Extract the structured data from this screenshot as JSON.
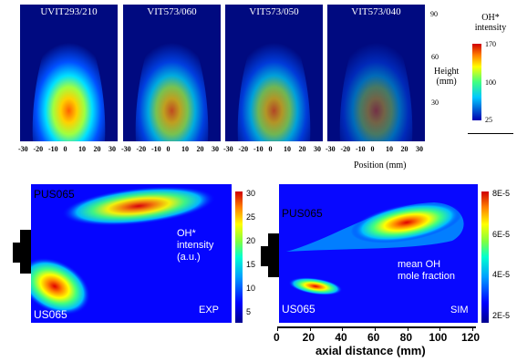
{
  "top": {
    "panels": [
      {
        "title": "UVIT293/210",
        "intensity": 1.0
      },
      {
        "title": "VIT573/060",
        "intensity": 0.75
      },
      {
        "title": "VIT573/050",
        "intensity": 0.7
      },
      {
        "title": "VIT573/040",
        "intensity": 0.45
      }
    ],
    "x_ticks": [
      "-30",
      "-20",
      "-10",
      "0",
      "10",
      "20",
      "30"
    ],
    "x_label": "Position (mm)",
    "y_ticks": [
      "90",
      "60",
      "30"
    ],
    "y_label": "Height\n(mm)",
    "colorbar": {
      "title": "OH*\nintensity",
      "ticks": [
        "170",
        "100",
        "25"
      ]
    }
  },
  "bottom_left": {
    "label_top": "PUS065",
    "label_bottom": "US065",
    "annotation": "OH*\nintensity\n(a.u.)",
    "tag": "EXP",
    "colorbar_ticks": [
      "30",
      "25",
      "20",
      "15",
      "10",
      "5"
    ]
  },
  "bottom_right": {
    "label_top": "PUS065",
    "label_bottom": "US065",
    "annotation": "mean OH\nmole fraction",
    "tag": "SIM",
    "colorbar_ticks": [
      "8E-5",
      "6E-5",
      "4E-5",
      "2E-5"
    ],
    "x_ticks": [
      "0",
      "20",
      "40",
      "60",
      "80",
      "100",
      "120"
    ],
    "x_label": "axial distance (mm)"
  }
}
